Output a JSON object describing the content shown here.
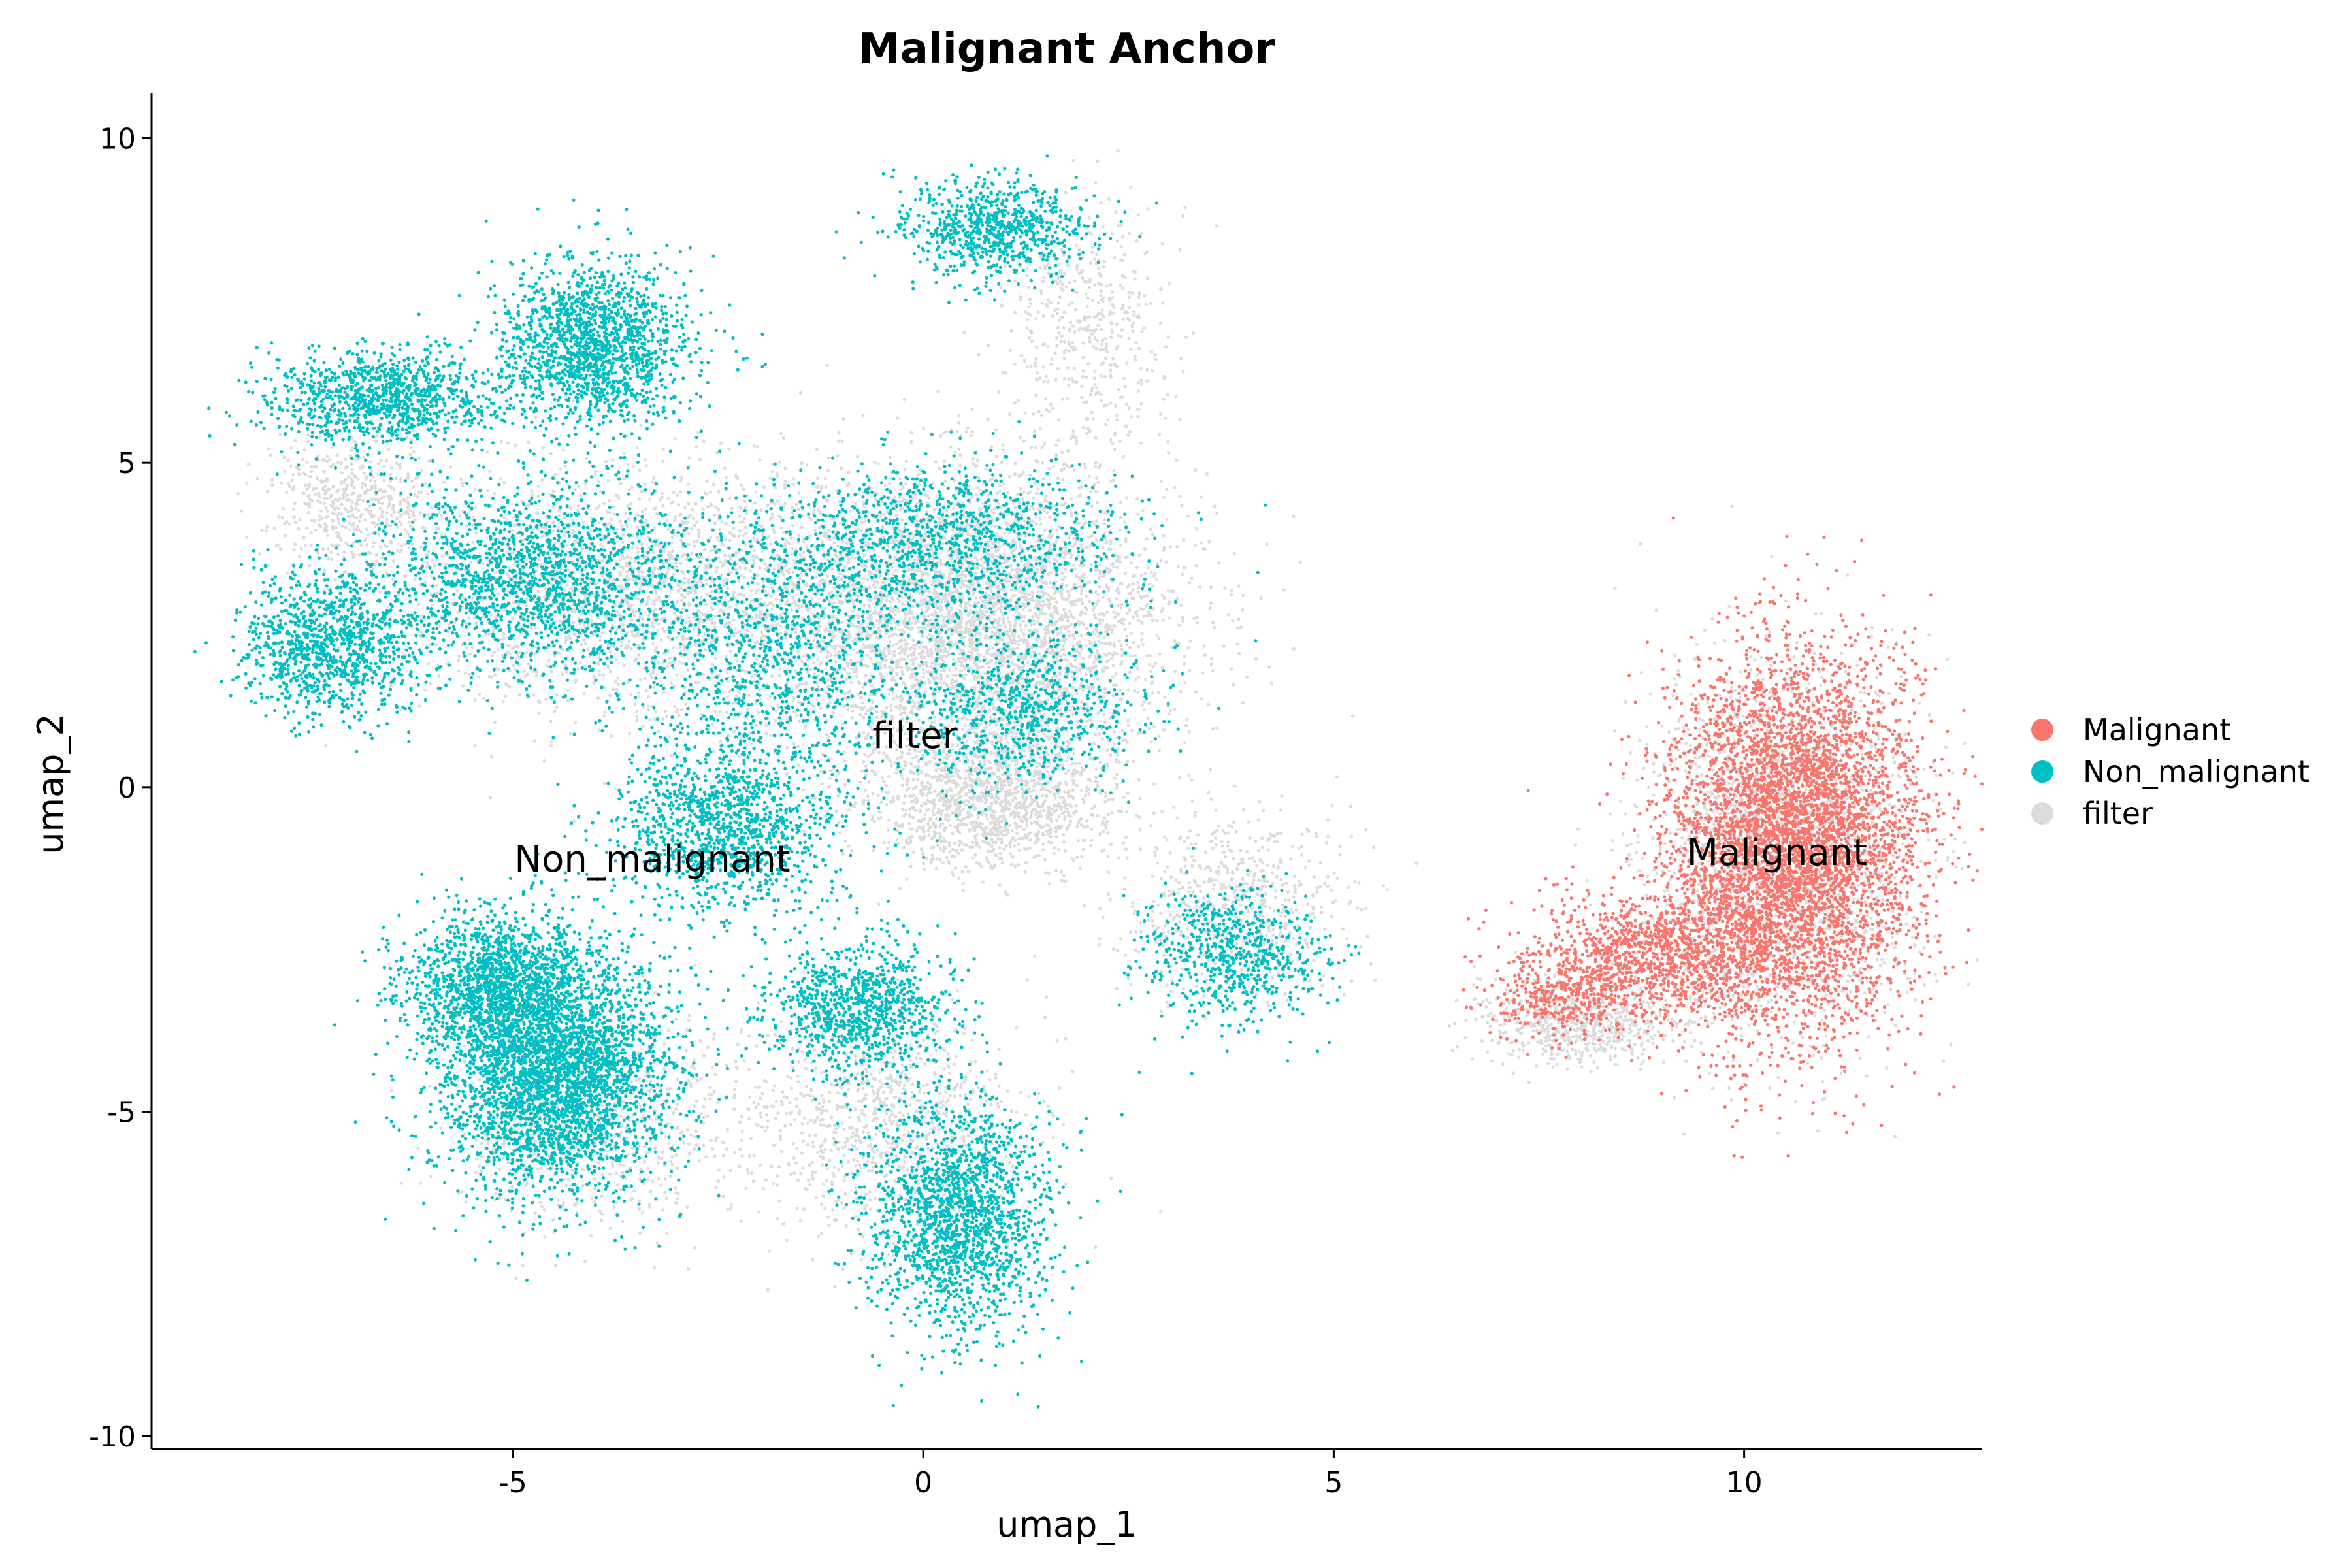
{
  "chart_data": {
    "type": "scatter",
    "title": "Malignant Anchor",
    "xlabel": "umap_1",
    "ylabel": "umap_2",
    "xlim": [
      -9.4,
      12.9
    ],
    "ylim": [
      -10.2,
      10.7
    ],
    "xticks": [
      -5,
      0,
      5,
      10
    ],
    "yticks": [
      10,
      5,
      0,
      -5,
      -10
    ],
    "xtick_labels": [
      "-5",
      "0",
      "5",
      "10"
    ],
    "ytick_labels": [
      "10",
      "5",
      "0",
      "-5",
      "-10"
    ],
    "grid": false,
    "legend_position": "right",
    "series": [
      {
        "name": "Malignant",
        "color": "#F8766D",
        "regions": [
          {
            "center": [
              10.6,
              -0.8
            ],
            "spread": [
              1.2,
              2.3
            ],
            "count": 5200
          },
          {
            "center": [
              9.0,
              -2.6
            ],
            "spread": [
              1.3,
              0.8
            ],
            "count": 1300
          },
          {
            "center": [
              7.8,
              -3.2
            ],
            "spread": [
              0.7,
              0.6
            ],
            "count": 350
          }
        ]
      },
      {
        "name": "Non_malignant",
        "color": "#00BFC4",
        "regions": [
          {
            "center": [
              -4.5,
              -4.4
            ],
            "spread": [
              1.1,
              1.5
            ],
            "count": 3600
          },
          {
            "center": [
              -5.2,
              -3.0
            ],
            "spread": [
              0.9,
              0.9
            ],
            "count": 1300
          },
          {
            "center": [
              -4.0,
              6.8
            ],
            "spread": [
              0.9,
              1.0
            ],
            "count": 1600
          },
          {
            "center": [
              -6.6,
              6.0
            ],
            "spread": [
              1.1,
              0.6
            ],
            "count": 1100
          },
          {
            "center": [
              -7.2,
              2.2
            ],
            "spread": [
              0.9,
              0.9
            ],
            "count": 1100
          },
          {
            "center": [
              -4.8,
              3.2
            ],
            "spread": [
              1.5,
              1.2
            ],
            "count": 1700
          },
          {
            "center": [
              -2.4,
              -0.6
            ],
            "spread": [
              1.1,
              1.1
            ],
            "count": 1300
          },
          {
            "center": [
              -1.8,
              2.2
            ],
            "spread": [
              1.6,
              1.6
            ],
            "count": 1100
          },
          {
            "center": [
              0.2,
              3.8
            ],
            "spread": [
              1.8,
              1.0
            ],
            "count": 1200
          },
          {
            "center": [
              1.2,
              1.2
            ],
            "spread": [
              1.2,
              1.0
            ],
            "count": 800
          },
          {
            "center": [
              0.4,
              -6.6
            ],
            "spread": [
              0.9,
              1.4
            ],
            "count": 1800
          },
          {
            "center": [
              -0.8,
              -3.4
            ],
            "spread": [
              0.9,
              0.8
            ],
            "count": 1000
          },
          {
            "center": [
              0.9,
              8.6
            ],
            "spread": [
              0.9,
              0.6
            ],
            "count": 800
          },
          {
            "center": [
              3.8,
              -2.6
            ],
            "spread": [
              0.9,
              0.8
            ],
            "count": 700
          }
        ]
      },
      {
        "name": "filter",
        "color": "#DCDCDC",
        "regions": [
          {
            "center": [
              0.6,
              2.6
            ],
            "spread": [
              2.0,
              1.8
            ],
            "count": 4200
          },
          {
            "center": [
              -3.4,
              3.0
            ],
            "spread": [
              2.4,
              1.6
            ],
            "count": 2000
          },
          {
            "center": [
              0.8,
              -0.2
            ],
            "spread": [
              1.2,
              0.8
            ],
            "count": 1400
          },
          {
            "center": [
              -0.6,
              -5.2
            ],
            "spread": [
              1.5,
              1.4
            ],
            "count": 900
          },
          {
            "center": [
              -4.0,
              -5.2
            ],
            "spread": [
              1.4,
              1.3
            ],
            "count": 700
          },
          {
            "center": [
              10.4,
              -1.0
            ],
            "spread": [
              1.3,
              2.2
            ],
            "count": 2200
          },
          {
            "center": [
              8.0,
              -3.6
            ],
            "spread": [
              1.0,
              0.5
            ],
            "count": 700
          },
          {
            "center": [
              3.8,
              -1.8
            ],
            "spread": [
              1.1,
              1.1
            ],
            "count": 600
          },
          {
            "center": [
              2.0,
              7.0
            ],
            "spread": [
              0.8,
              1.6
            ],
            "count": 500
          },
          {
            "center": [
              -7.0,
              4.4
            ],
            "spread": [
              0.8,
              0.8
            ],
            "count": 500
          }
        ]
      }
    ],
    "cluster_labels": [
      {
        "text": "Malignant",
        "x": 10.4,
        "y": -1.2
      },
      {
        "text": "Non_malignant",
        "x": -3.3,
        "y": -1.3
      },
      {
        "text": "filter",
        "x": -0.1,
        "y": 0.6
      }
    ]
  }
}
